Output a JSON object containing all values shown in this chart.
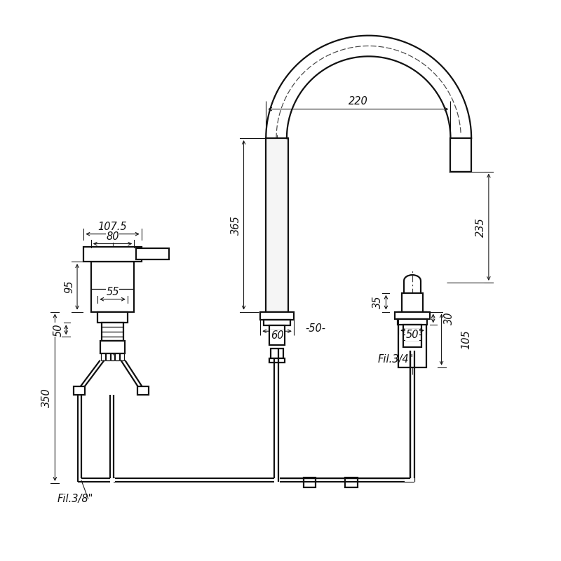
{
  "bg_color": "#ffffff",
  "line_color": "#111111",
  "dim_color": "#111111",
  "lw_main": 1.6,
  "lw_thin": 0.9,
  "lw_dim": 0.75,
  "lw_dash": 0.85,
  "dim_fs": 10.5,
  "label_fs": 10.5,
  "labels": {
    "fil_38": "Fil.3/8\"",
    "fil_34": "Fil.3/4\""
  },
  "dims": {
    "d107": "107.5",
    "d80": "80",
    "d95": "95",
    "d55": "55",
    "d50a": "50",
    "d350": "350",
    "d365": "365",
    "d220": "220",
    "d235": "235",
    "d35": "35",
    "d60": "60",
    "d50b": "50",
    "d105": "105",
    "d30": "30",
    "d50c": "-50-"
  }
}
